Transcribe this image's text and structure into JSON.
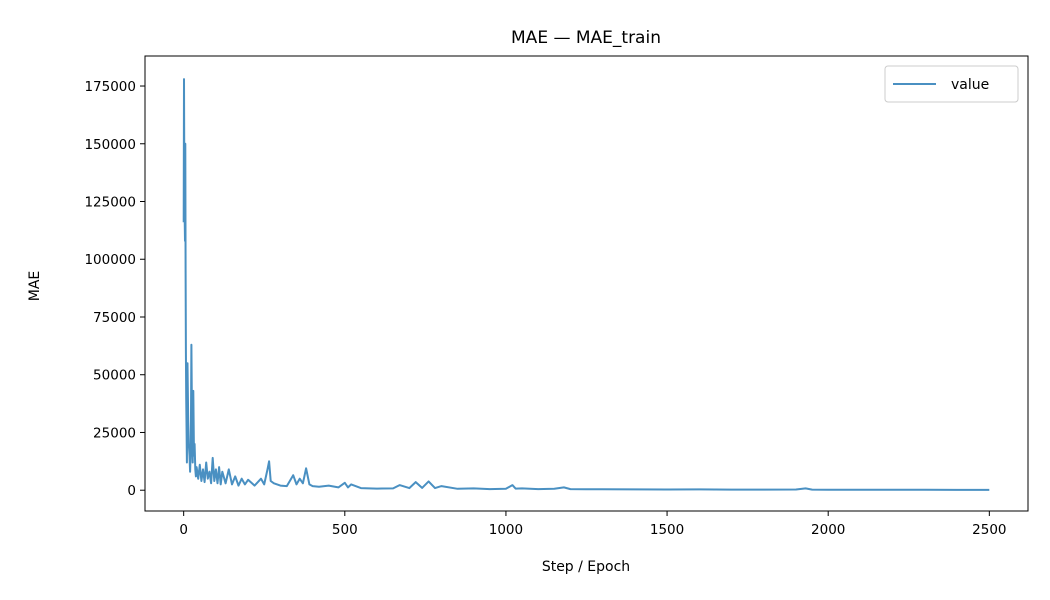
{
  "chart_data": {
    "type": "line",
    "title": "MAE — MAE_train",
    "xlabel": "Step / Epoch",
    "ylabel": "MAE",
    "xlim": [
      -120,
      2620
    ],
    "ylim": [
      -9000,
      188000
    ],
    "xticks": [
      0,
      500,
      1000,
      1500,
      2000,
      2500
    ],
    "yticks": [
      0,
      25000,
      50000,
      75000,
      100000,
      125000,
      150000,
      175000
    ],
    "legend": {
      "location": "top-right",
      "entries": [
        "value"
      ]
    },
    "grid": false,
    "series": [
      {
        "name": "value",
        "color": "#4a90c2",
        "x": [
          0,
          1,
          2,
          3,
          4,
          5,
          6,
          7,
          8,
          9,
          10,
          12,
          14,
          16,
          18,
          20,
          22,
          24,
          26,
          28,
          30,
          32,
          34,
          36,
          38,
          40,
          45,
          50,
          55,
          60,
          65,
          70,
          75,
          80,
          85,
          90,
          95,
          100,
          105,
          110,
          115,
          120,
          130,
          140,
          150,
          160,
          170,
          180,
          190,
          200,
          220,
          240,
          250,
          260,
          265,
          270,
          280,
          300,
          320,
          340,
          350,
          360,
          370,
          380,
          390,
          400,
          420,
          450,
          480,
          500,
          510,
          520,
          550,
          600,
          650,
          670,
          700,
          720,
          740,
          760,
          780,
          800,
          850,
          900,
          950,
          1000,
          1020,
          1030,
          1050,
          1100,
          1150,
          1180,
          1200,
          1250,
          1300,
          1400,
          1500,
          1600,
          1700,
          1800,
          1900,
          1930,
          1950,
          2000,
          2100,
          2200,
          2300,
          2400,
          2500
        ],
        "y": [
          116000,
          178000,
          140000,
          120000,
          108000,
          150000,
          95000,
          60000,
          40000,
          25000,
          12000,
          55000,
          30000,
          20000,
          15000,
          8000,
          18000,
          63000,
          25000,
          12000,
          43000,
          15000,
          20000,
          9000,
          6000,
          10000,
          5000,
          11000,
          4000,
          9000,
          3500,
          12000,
          5000,
          8000,
          3000,
          14000,
          4000,
          9000,
          3000,
          10000,
          2500,
          8000,
          3000,
          9000,
          2500,
          6000,
          2000,
          5000,
          2500,
          4500,
          2000,
          5000,
          2500,
          9000,
          12500,
          4000,
          3000,
          2000,
          1800,
          6500,
          2500,
          5000,
          3000,
          9500,
          2500,
          1800,
          1500,
          2000,
          1200,
          3200,
          1200,
          2500,
          900,
          700,
          800,
          2200,
          900,
          3500,
          1000,
          3800,
          900,
          1800,
          600,
          800,
          500,
          600,
          2200,
          700,
          800,
          500,
          600,
          1200,
          500,
          400,
          450,
          350,
          300,
          350,
          280,
          250,
          300,
          800,
          250,
          200,
          180,
          170,
          160,
          150,
          150
        ]
      }
    ]
  }
}
